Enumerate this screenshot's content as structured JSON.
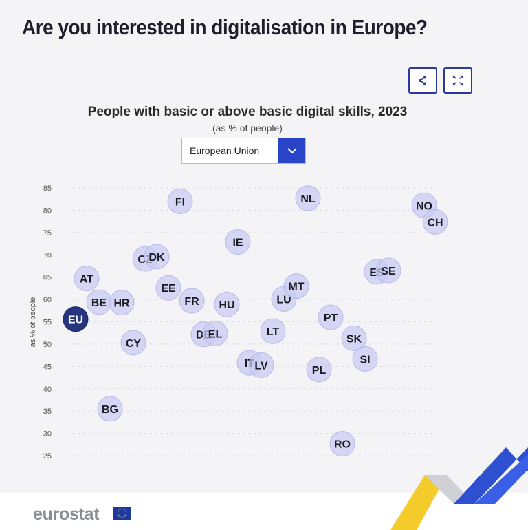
{
  "page_title": "Are you interested in digitalisation in Europe?",
  "toolbar": {
    "share_icon": "share-icon",
    "expand_icon": "expand-icon"
  },
  "selector": {
    "selected": "European Union",
    "icon": "chevron-down-icon"
  },
  "brand": {
    "name": "eurostat",
    "flag_icon": "eu-flag-icon",
    "accent": "#2a44c8",
    "bubble_fill": "#c9cbf2",
    "eu_fill": "#26357f"
  },
  "chart_data": {
    "type": "scatter",
    "title": "People with basic or above basic digital skills, 2023",
    "subtitle": "(as % of people)",
    "ylabel": "as % of people",
    "ylim": [
      25,
      85
    ],
    "yticks": [
      85,
      80,
      75,
      70,
      65,
      60,
      55,
      50,
      45,
      40,
      35,
      30,
      25
    ],
    "grid": true,
    "points": [
      {
        "label": "EU",
        "value": 55.6,
        "highlight": true
      },
      {
        "label": "AT",
        "value": 64.7
      },
      {
        "label": "BE",
        "value": 59.4
      },
      {
        "label": "BG",
        "value": 35.5
      },
      {
        "label": "HR",
        "value": 59.3
      },
      {
        "label": "CY",
        "value": 50.3
      },
      {
        "label": "CZ",
        "value": 69.1
      },
      {
        "label": "DK",
        "value": 69.6
      },
      {
        "label": "EE",
        "value": 62.6
      },
      {
        "label": "FI",
        "value": 82.0
      },
      {
        "label": "FR",
        "value": 59.7
      },
      {
        "label": "DE",
        "value": 52.2
      },
      {
        "label": "EL",
        "value": 52.4
      },
      {
        "label": "HU",
        "value": 58.9
      },
      {
        "label": "IE",
        "value": 72.9
      },
      {
        "label": "IT",
        "value": 45.8
      },
      {
        "label": "LV",
        "value": 45.3
      },
      {
        "label": "LT",
        "value": 52.9
      },
      {
        "label": "LU",
        "value": 60.1
      },
      {
        "label": "MT",
        "value": 63.0
      },
      {
        "label": "NL",
        "value": 82.7
      },
      {
        "label": "PL",
        "value": 44.3
      },
      {
        "label": "PT",
        "value": 56.0
      },
      {
        "label": "RO",
        "value": 27.7
      },
      {
        "label": "SK",
        "value": 51.3
      },
      {
        "label": "SI",
        "value": 46.7
      },
      {
        "label": "ES",
        "value": 66.2
      },
      {
        "label": "SE",
        "value": 66.5
      },
      {
        "label": "NO",
        "value": 81.1
      },
      {
        "label": "CH",
        "value": 77.4
      }
    ]
  }
}
